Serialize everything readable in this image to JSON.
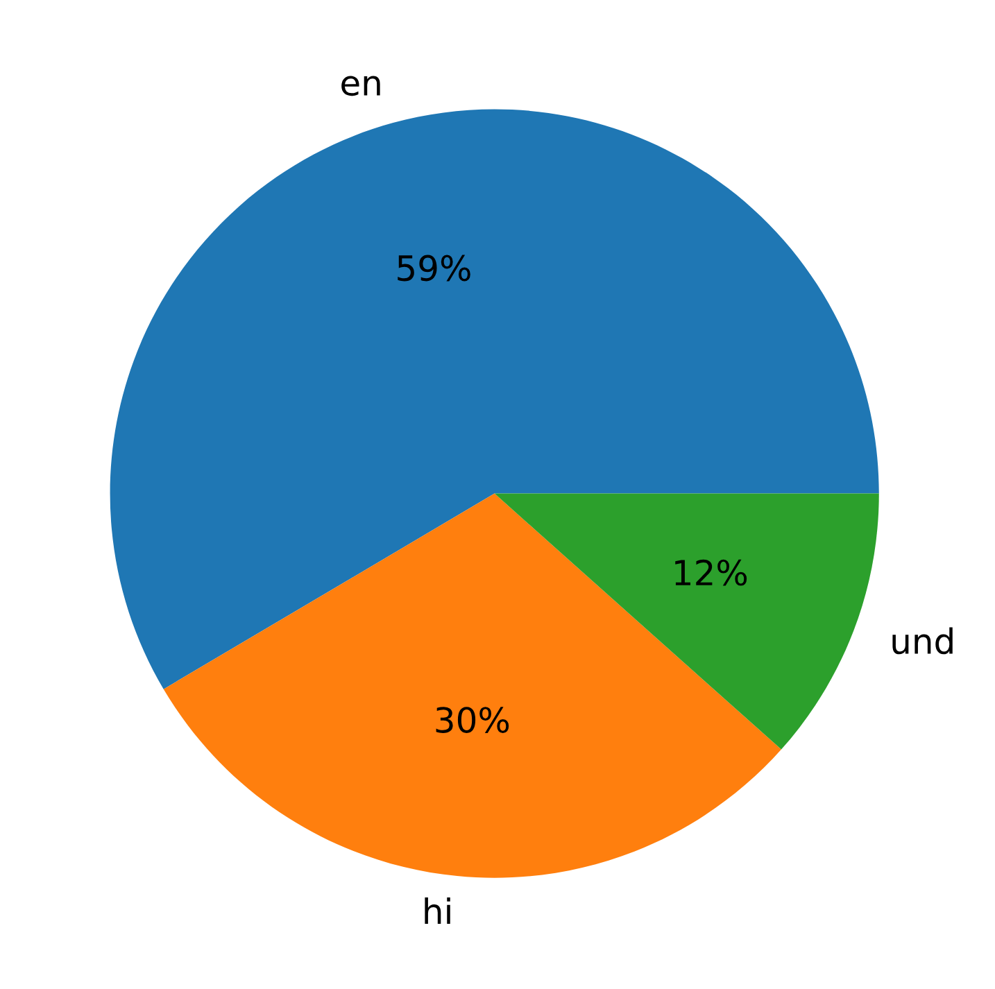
{
  "chart_data": {
    "type": "pie",
    "categories": [
      "en",
      "hi",
      "und"
    ],
    "values": [
      58.5,
      29.9,
      11.6
    ],
    "value_labels": [
      "59%",
      "30%",
      "12%"
    ],
    "colors": [
      "#1f77b4",
      "#ff7f0e",
      "#2ca02c"
    ],
    "legend": false
  }
}
